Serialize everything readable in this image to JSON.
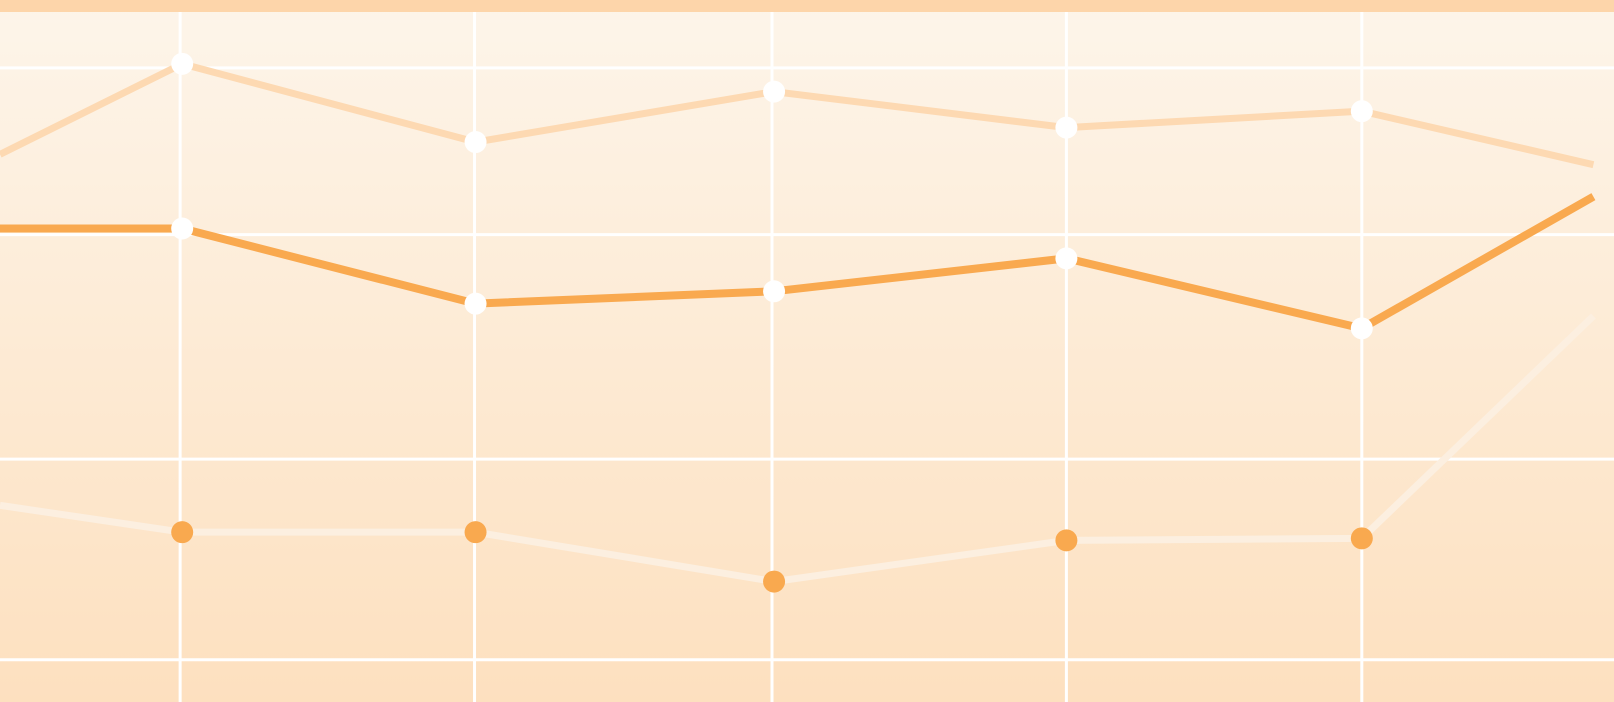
{
  "chart_data": {
    "type": "line",
    "x": [
      0,
      177,
      462,
      752,
      1036,
      1323,
      1548
    ],
    "xlim": [
      0,
      1568
    ],
    "ylim": [
      0,
      682
    ],
    "xticks": [
      175,
      461,
      750,
      1036,
      1323
    ],
    "yticks": [
      41,
      236,
      454,
      616
    ],
    "grid": true,
    "series": [
      {
        "color": "#fdd9b2",
        "marker_color": "#ffffff",
        "values": [
          532,
          620,
          544,
          593,
          558,
          574,
          522
        ]
      },
      {
        "color": "#f9a94f",
        "marker_color": "#ffffff",
        "values": [
          460,
          460,
          387,
          399,
          431,
          363,
          491
        ]
      },
      {
        "color": "#fcefe0",
        "marker_color": "#f9a94f",
        "values": [
          191,
          165,
          165,
          117,
          157,
          159,
          375
        ]
      }
    ]
  }
}
